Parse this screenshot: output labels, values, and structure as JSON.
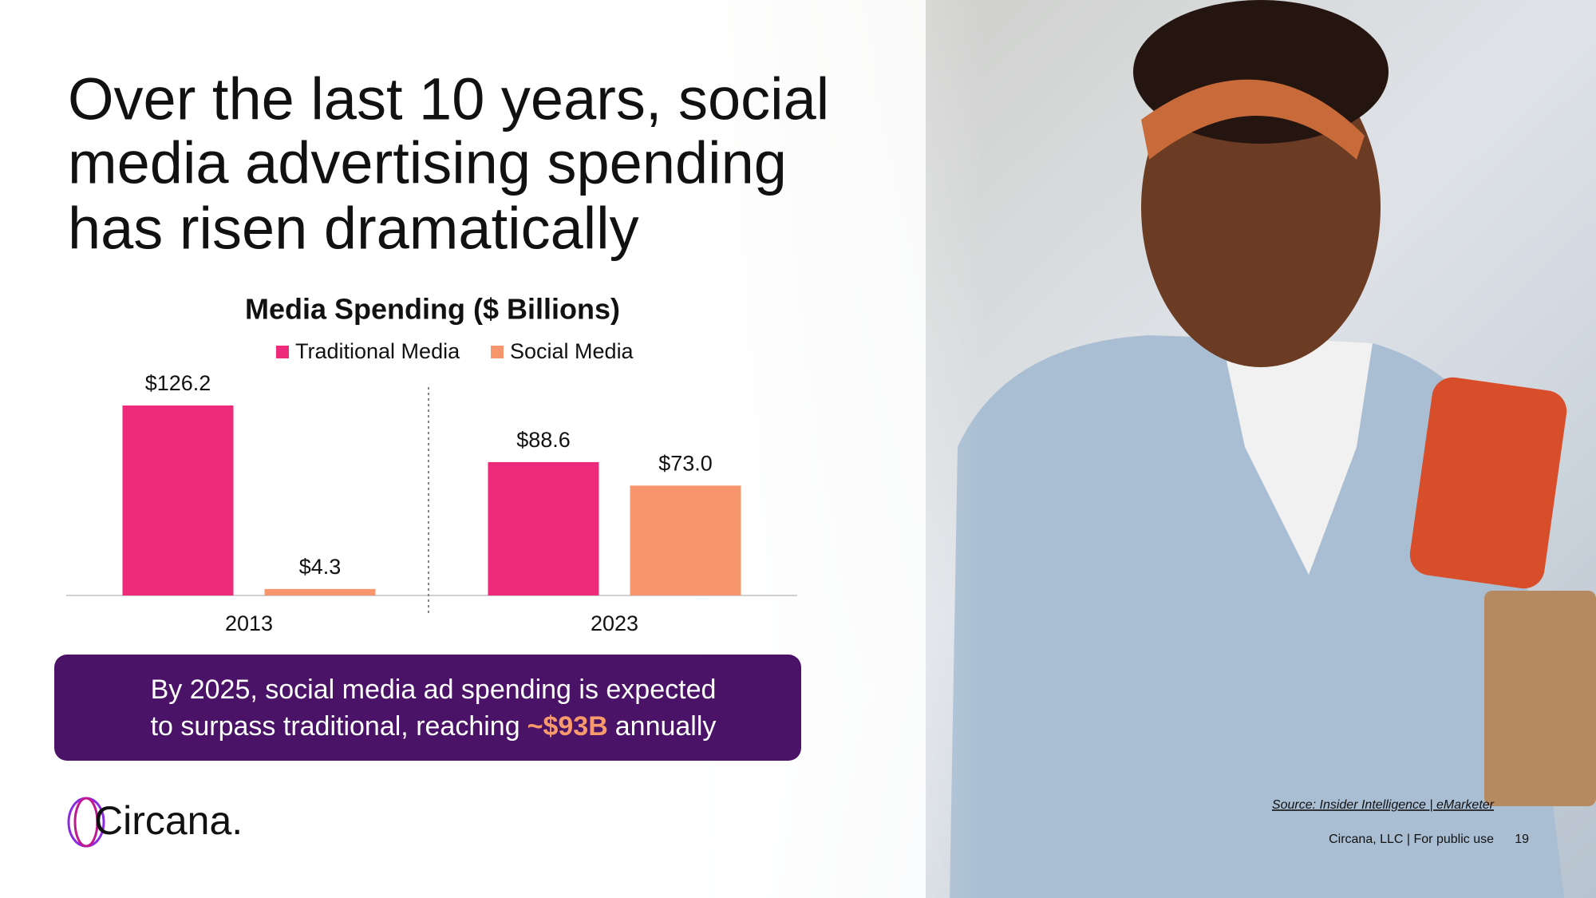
{
  "title": [
    "Over the last 10 years, social",
    "media advertising spending",
    "has risen dramatically"
  ],
  "chart_data": {
    "type": "bar",
    "title": "Media Spending ($ Billions)",
    "categories": [
      "2013",
      "2023"
    ],
    "series": [
      {
        "name": "Traditional Media",
        "color": "#ee2a7b",
        "values": [
          126.2,
          88.6
        ],
        "value_labels": [
          "$126.2",
          "$88.6"
        ]
      },
      {
        "name": "Social Media",
        "color": "#f7956c",
        "values": [
          4.3,
          73.0
        ],
        "value_labels": [
          "$4.3",
          "$73.0"
        ]
      }
    ]
  },
  "callout": {
    "line1": "By 2025, social media ad spending is expected",
    "line2_before": "to surpass traditional, reaching",
    "highlight": "~$93B",
    "line2_after": "annually"
  },
  "logo": "Circana.",
  "source": "Source: Insider Intelligence | eMarketer",
  "footer": "Circana, LLC |  For public use",
  "page_number": "19"
}
